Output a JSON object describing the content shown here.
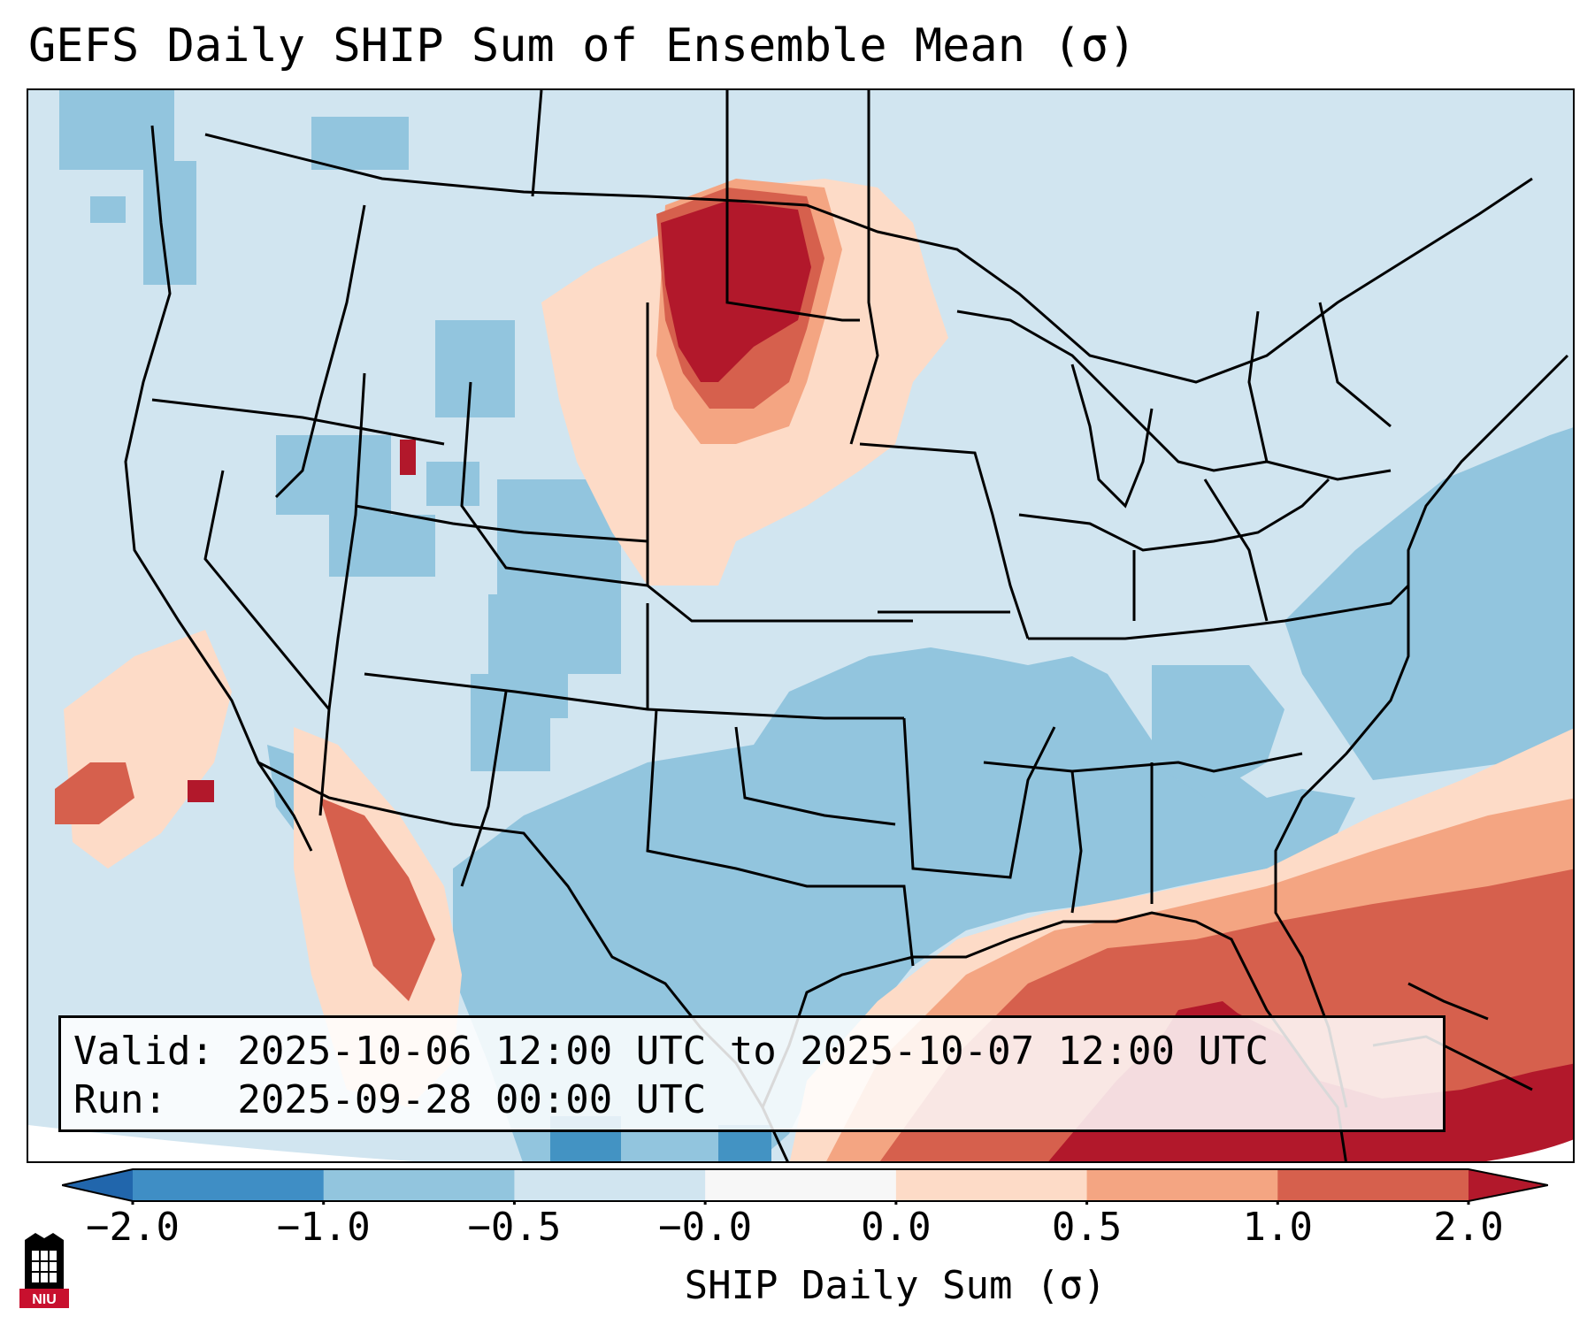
{
  "title": "GEFS Daily SHIP Sum of Ensemble Mean (σ)",
  "info": {
    "valid_line": "Valid: 2025-10-06 12:00 UTC to 2025-10-07 12:00 UTC",
    "run_line": "Run:   2025-09-28 00:00 UTC"
  },
  "colorbar": {
    "label": "SHIP Daily Sum (σ)",
    "ticks": [
      "−2.0",
      "−1.0",
      "−0.5",
      "−0.0",
      "0.0",
      "0.5",
      "1.0",
      "2.0"
    ],
    "colors": [
      "#3f8ec5",
      "#92c5de",
      "#d1e5f0",
      "#f7f7f7",
      "#fddbc7",
      "#f4a582",
      "#d6604d",
      "#b2182b"
    ],
    "under_color": "#2166ac",
    "over_color": "#67001f"
  },
  "logo": {
    "text": "NIU"
  },
  "map": {
    "projection_edge_color": "#ffffff",
    "background_value": "-0.5 to 0.0",
    "regions": [
      {
        "name": "northern-plains-maximum",
        "category": "1.0 to 2.0"
      },
      {
        "name": "gulf-of-mexico-maximum",
        "category": "1.0 to 2.0"
      },
      {
        "name": "western-atlantic-minimum",
        "category": "-1.0 to -0.5"
      },
      {
        "name": "texas-minimum",
        "category": "-1.0 to -0.5"
      }
    ]
  }
}
